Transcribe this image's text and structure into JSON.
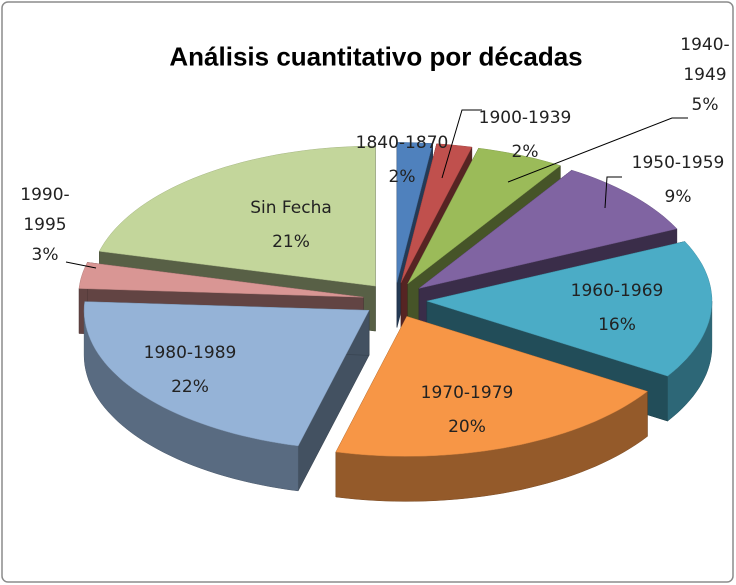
{
  "chart_data": {
    "type": "pie",
    "title": "Análisis cuantitativo por décadas",
    "categories": [
      "1840-1870",
      "1900-1939",
      "1940-1949",
      "1950-1959",
      "1960-1969",
      "1970-1979",
      "1980-1989",
      "1990-1995",
      "Sin Fecha"
    ],
    "values": [
      2,
      2,
      5,
      9,
      16,
      20,
      22,
      3,
      21
    ],
    "value_labels": [
      "2%",
      "2%",
      "5%",
      "9%",
      "16%",
      "20%",
      "22%",
      "3%",
      "21%"
    ],
    "colors": [
      "#4f81bd",
      "#c0504d",
      "#9bbb59",
      "#8064a2",
      "#4bacc6",
      "#f79646",
      "#95b3d7",
      "#d99694",
      "#c3d69b"
    ]
  }
}
